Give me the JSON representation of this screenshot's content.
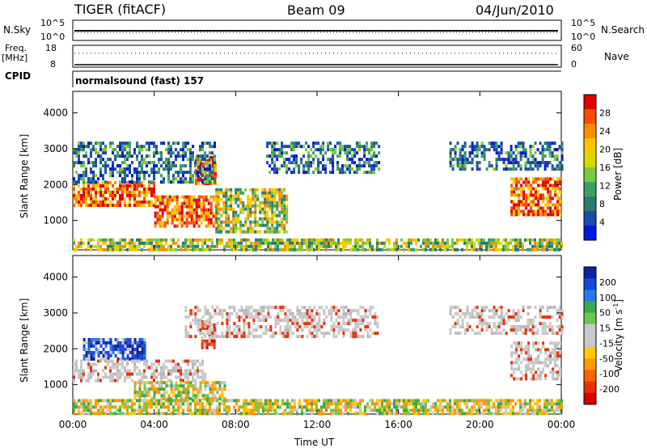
{
  "header": {
    "station": "TIGER (fitACF)",
    "beam": "Beam 09",
    "date": "04/Jun/2010"
  },
  "nsky_panel": {
    "label": "N.Sky",
    "right_label": "N.Search",
    "ticks_left": [
      "10^5",
      "10^0"
    ],
    "ticks_right": [
      "10^5",
      "10^0"
    ]
  },
  "freq_panel": {
    "label_line1": "Freq.",
    "label_line2": "[MHz]",
    "ticks_left": [
      "18",
      "8"
    ],
    "ticks_right": [
      "60",
      "0"
    ],
    "right_label": "Nave"
  },
  "cpid_panel": {
    "label": "CPID",
    "program": "normalsound (fast) 157"
  },
  "chart_data": [
    {
      "type": "heatmap",
      "name": "power-panel",
      "xlabel": "",
      "ylabel": "Slant Range [km]",
      "xlim_hours": [
        0,
        24
      ],
      "ylim": [
        180,
        4600
      ],
      "yticks": [
        1000,
        2000,
        3000,
        4000
      ],
      "colorbar": {
        "label": "Power [dB]",
        "ticks": [
          "28",
          "24",
          "20",
          "16",
          "12",
          "8",
          "4"
        ],
        "colors": [
          "#e00000",
          "#ff4a00",
          "#ff8c00",
          "#ffc400",
          "#d8d800",
          "#7cc840",
          "#3aa060",
          "#2a7a70",
          "#1c4aa8",
          "#0018d8"
        ]
      },
      "regions": [
        {
          "t0": 0.0,
          "t1": 4.0,
          "r0": 1400,
          "r1": 2100,
          "level": "high"
        },
        {
          "t0": 4.0,
          "t1": 7.2,
          "r0": 800,
          "r1": 1700,
          "level": "high"
        },
        {
          "t0": 6.0,
          "t1": 7.0,
          "r0": 2000,
          "r1": 2800,
          "level": "high"
        },
        {
          "t0": 0.0,
          "t1": 7.0,
          "r0": 2100,
          "r1": 3200,
          "level": "low"
        },
        {
          "t0": 7.0,
          "t1": 10.5,
          "r0": 700,
          "r1": 1900,
          "level": "mid"
        },
        {
          "t0": 9.5,
          "t1": 15.0,
          "r0": 2300,
          "r1": 3200,
          "level": "low"
        },
        {
          "t0": 18.5,
          "t1": 24.0,
          "r0": 2400,
          "r1": 3200,
          "level": "low"
        },
        {
          "t0": 21.5,
          "t1": 24.0,
          "r0": 1200,
          "r1": 2200,
          "level": "high"
        },
        {
          "t0": 0.0,
          "t1": 24.0,
          "r0": 200,
          "r1": 500,
          "level": "mid"
        }
      ]
    },
    {
      "type": "heatmap",
      "name": "velocity-panel",
      "xlabel": "Time UT",
      "ylabel": "Slant Range [km]",
      "xlim_hours": [
        0,
        24
      ],
      "ylim": [
        180,
        4600
      ],
      "yticks": [
        1000,
        2000,
        3000,
        4000
      ],
      "xticks": [
        "00:00",
        "04:00",
        "08:00",
        "12:00",
        "16:00",
        "20:00",
        "00:00"
      ],
      "colorbar": {
        "label": "Velocity [m s",
        "label_sup": "-1",
        "label_end": "]",
        "ticks": [
          "200",
          "100",
          "50",
          "15",
          "-15",
          "-50",
          "-100",
          "-200"
        ],
        "colors": [
          "#1020a0",
          "#1848d8",
          "#2878e8",
          "#3aa850",
          "#6cc84c",
          "#c8c8c8",
          "#c8c8c8",
          "#ffc800",
          "#ff9a00",
          "#ff6000",
          "#e83000",
          "#d80000"
        ]
      },
      "regions": [
        {
          "t0": 0.5,
          "t1": 3.5,
          "r0": 1700,
          "r1": 2300,
          "level": "pos"
        },
        {
          "t0": 0.0,
          "t1": 6.5,
          "r0": 1100,
          "r1": 1700,
          "level": "ground"
        },
        {
          "t0": 3.0,
          "t1": 7.5,
          "r0": 600,
          "r1": 1100,
          "level": "slowneg"
        },
        {
          "t0": 6.3,
          "t1": 7.0,
          "r0": 2000,
          "r1": 2800,
          "level": "neg"
        },
        {
          "t0": 5.5,
          "t1": 15.0,
          "r0": 2300,
          "r1": 3200,
          "level": "ground"
        },
        {
          "t0": 18.5,
          "t1": 24.0,
          "r0": 2400,
          "r1": 3200,
          "level": "ground"
        },
        {
          "t0": 21.5,
          "t1": 24.0,
          "r0": 1200,
          "r1": 2200,
          "level": "ground"
        },
        {
          "t0": 0.0,
          "t1": 24.0,
          "r0": 200,
          "r1": 600,
          "level": "slowneg"
        }
      ]
    }
  ]
}
